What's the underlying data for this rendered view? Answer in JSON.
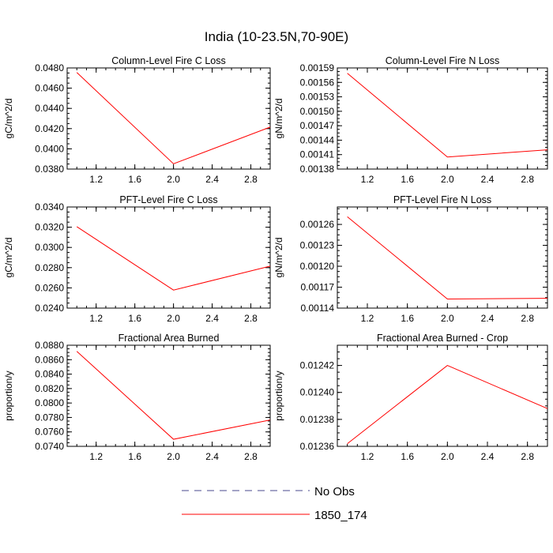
{
  "figure_title": "India (10-23.5N,70-90E)",
  "legend": [
    {
      "label": "No Obs",
      "color": "#4a4a8c",
      "style": "dashed"
    },
    {
      "label": "1850_174",
      "color": "#ff0000",
      "style": "solid"
    }
  ],
  "chart_data": [
    {
      "type": "line",
      "title": "Column-Level Fire C Loss",
      "ylabel": "gC/m^2/d",
      "xlim": [
        0.9,
        3.0
      ],
      "ylim": [
        0.038,
        0.048
      ],
      "xticks": [
        "1.2",
        "1.6",
        "2.0",
        "2.4",
        "2.8"
      ],
      "yticks": [
        "0.0380",
        "0.0400",
        "0.0420",
        "0.0440",
        "0.0460",
        "0.0480"
      ],
      "series": [
        {
          "name": "1850_174",
          "x": [
            1.0,
            2.0,
            3.0
          ],
          "y": [
            0.04755,
            0.03852,
            0.04215
          ]
        }
      ]
    },
    {
      "type": "line",
      "title": "Column-Level Fire N Loss",
      "ylabel": "gN/m^2/d",
      "xlim": [
        0.9,
        3.0
      ],
      "ylim": [
        0.00138,
        0.00159
      ],
      "xticks": [
        "1.2",
        "1.6",
        "2.0",
        "2.4",
        "2.8"
      ],
      "yticks": [
        "0.00138",
        "0.00141",
        "0.00144",
        "0.00147",
        "0.00150",
        "0.00153",
        "0.00156",
        "0.00159"
      ],
      "series": [
        {
          "name": "1850_174",
          "x": [
            1.0,
            2.0,
            3.0
          ],
          "y": [
            0.001579,
            0.001405,
            0.00142
          ]
        }
      ]
    },
    {
      "type": "line",
      "title": "PFT-Level Fire C Loss",
      "ylabel": "gC/m^2/d",
      "xlim": [
        0.9,
        3.0
      ],
      "ylim": [
        0.024,
        0.034
      ],
      "xticks": [
        "1.2",
        "1.6",
        "2.0",
        "2.4",
        "2.8"
      ],
      "yticks": [
        "0.0240",
        "0.0260",
        "0.0280",
        "0.0300",
        "0.0320",
        "0.0340"
      ],
      "series": [
        {
          "name": "1850_174",
          "x": [
            1.0,
            2.0,
            3.0
          ],
          "y": [
            0.03205,
            0.02578,
            0.02815
          ]
        }
      ]
    },
    {
      "type": "line",
      "title": "PFT-Level Fire N Loss",
      "ylabel": "gN/m^2/d",
      "xlim": [
        0.9,
        3.0
      ],
      "ylim": [
        0.00114,
        0.001285
      ],
      "xticks": [
        "1.2",
        "1.6",
        "2.0",
        "2.4",
        "2.8"
      ],
      "yticks": [
        "0.00114",
        "0.00117",
        "0.00120",
        "0.00123",
        "0.00126"
      ],
      "series": [
        {
          "name": "1850_174",
          "x": [
            1.0,
            2.0,
            3.0
          ],
          "y": [
            0.001271,
            0.001153,
            0.001154
          ]
        }
      ]
    },
    {
      "type": "line",
      "title": "Fractional Area Burned",
      "ylabel": "proportion/y",
      "xlim": [
        0.9,
        3.0
      ],
      "ylim": [
        0.074,
        0.088
      ],
      "xticks": [
        "1.2",
        "1.6",
        "2.0",
        "2.4",
        "2.8"
      ],
      "yticks": [
        "0.0740",
        "0.0760",
        "0.0780",
        "0.0800",
        "0.0820",
        "0.0840",
        "0.0860",
        "0.0880"
      ],
      "series": [
        {
          "name": "1850_174",
          "x": [
            1.0,
            2.0,
            3.0
          ],
          "y": [
            0.08715,
            0.07498,
            0.07765
          ]
        }
      ]
    },
    {
      "type": "line",
      "title": "Fractional Area Burned - Crop",
      "ylabel": "proportion/y",
      "xlim": [
        0.9,
        3.0
      ],
      "ylim": [
        0.01236,
        0.012435
      ],
      "xticks": [
        "1.2",
        "1.6",
        "2.0",
        "2.4",
        "2.8"
      ],
      "yticks": [
        "0.01236",
        "0.01238",
        "0.01240",
        "0.01242"
      ],
      "series": [
        {
          "name": "1850_174",
          "x": [
            1.0,
            2.0,
            3.0
          ],
          "y": [
            0.012362,
            0.01242,
            0.012388
          ]
        }
      ]
    }
  ]
}
